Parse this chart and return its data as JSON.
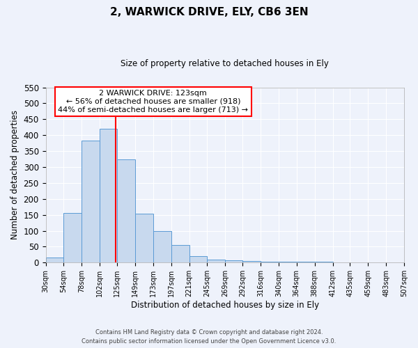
{
  "title": "2, WARWICK DRIVE, ELY, CB6 3EN",
  "subtitle": "Size of property relative to detached houses in Ely",
  "xlabel": "Distribution of detached houses by size in Ely",
  "ylabel": "Number of detached properties",
  "bar_color": "#c8d9ee",
  "bar_edge_color": "#5b9bd5",
  "background_color": "#eef2fb",
  "grid_color": "#ffffff",
  "bins": [
    30,
    54,
    78,
    102,
    125,
    149,
    173,
    197,
    221,
    245,
    269,
    292,
    316,
    340,
    364,
    388,
    412,
    435,
    459,
    483,
    507
  ],
  "values": [
    15,
    155,
    382,
    420,
    323,
    153,
    100,
    55,
    20,
    10,
    8,
    5,
    3,
    2,
    2,
    2,
    1,
    1,
    1,
    1
  ],
  "tick_labels": [
    "30sqm",
    "54sqm",
    "78sqm",
    "102sqm",
    "125sqm",
    "149sqm",
    "173sqm",
    "197sqm",
    "221sqm",
    "245sqm",
    "269sqm",
    "292sqm",
    "316sqm",
    "340sqm",
    "364sqm",
    "388sqm",
    "412sqm",
    "435sqm",
    "459sqm",
    "483sqm",
    "507sqm"
  ],
  "property_line_x": 123,
  "ylim": [
    0,
    550
  ],
  "yticks": [
    0,
    50,
    100,
    150,
    200,
    250,
    300,
    350,
    400,
    450,
    500,
    550
  ],
  "annotation_title": "2 WARWICK DRIVE: 123sqm",
  "annotation_line1": "← 56% of detached houses are smaller (918)",
  "annotation_line2": "44% of semi-detached houses are larger (713) →",
  "footer_line1": "Contains HM Land Registry data © Crown copyright and database right 2024.",
  "footer_line2": "Contains public sector information licensed under the Open Government Licence v3.0."
}
